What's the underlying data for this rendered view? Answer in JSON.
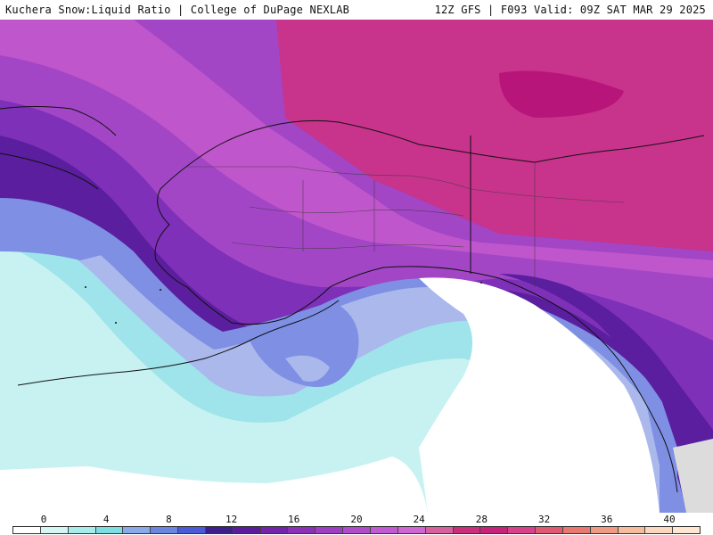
{
  "header": {
    "left": "Kuchera Snow:Liquid Ratio | College of DuPage NEXLAB",
    "right": "12Z GFS | F093 Valid: 09Z SAT MAR 29 2025"
  },
  "legend": {
    "ticks": [
      "0",
      "4",
      "8",
      "12",
      "16",
      "20",
      "24",
      "28",
      "32",
      "36",
      "40"
    ],
    "colors": [
      "#ffffff",
      "#d6f6f4",
      "#a8ecec",
      "#7ddde0",
      "#8aa9e8",
      "#6a86e0",
      "#4a5ad8",
      "#3c1e8c",
      "#5a1c9c",
      "#7424aa",
      "#8c30b8",
      "#9e3ec4",
      "#b04ccc",
      "#c25ad4",
      "#d066d4",
      "#d8609e",
      "#cc2e7c",
      "#c8237a",
      "#d9428a",
      "#e05a72",
      "#e87870",
      "#f09a86",
      "#f6bc9e",
      "#fad8c0",
      "#fde6d2"
    ]
  },
  "map": {
    "colors": {
      "ocean_white": "#ffffff",
      "light_cyan": "#c8f2f2",
      "cyan": "#9fe4ea",
      "pale_blue": "#aab8ec",
      "blue": "#7e8fe4",
      "purple_dark": "#5a1e9e",
      "purple": "#7e30b8",
      "violet": "#a246c6",
      "orchid": "#c056cc",
      "magenta": "#c8338c",
      "magenta_dark": "#c2227c",
      "border": "#111111"
    }
  }
}
